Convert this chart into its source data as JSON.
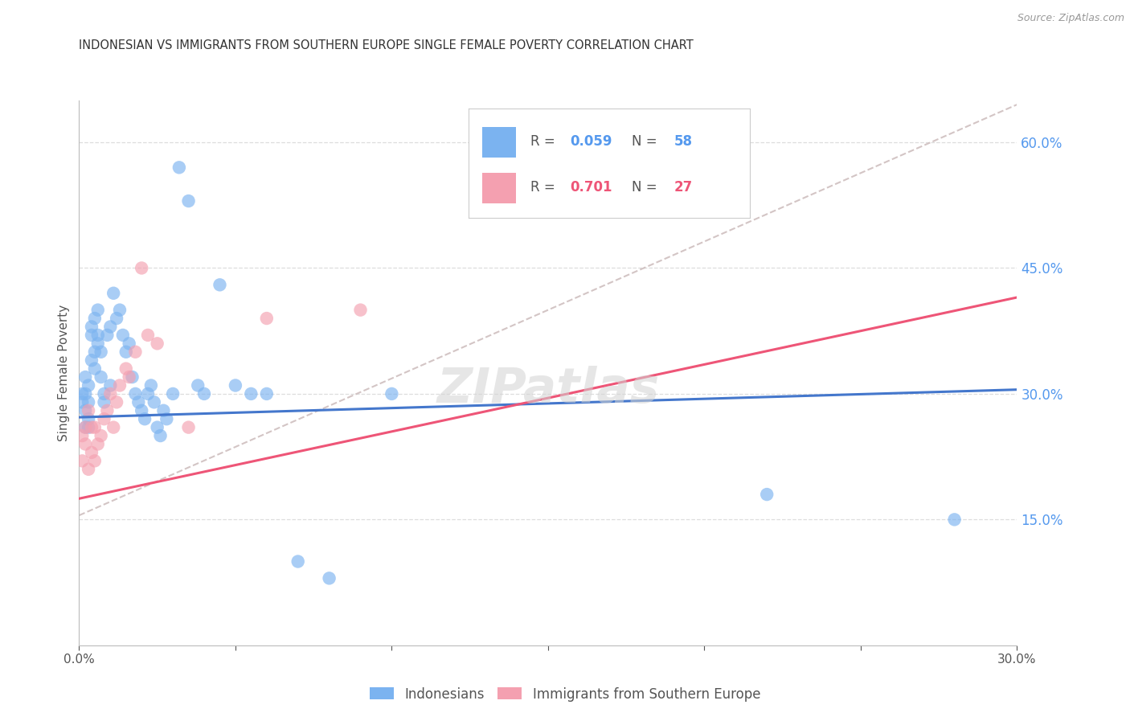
{
  "title": "INDONESIAN VS IMMIGRANTS FROM SOUTHERN EUROPE SINGLE FEMALE POVERTY CORRELATION CHART",
  "source": "Source: ZipAtlas.com",
  "ylabel": "Single Female Poverty",
  "legend_blue_R": "R = 0.059",
  "legend_blue_N": "N = 58",
  "legend_pink_R": "R = 0.701",
  "legend_pink_N": "N = 27",
  "blue_color": "#7BB3F0",
  "pink_color": "#F4A0B0",
  "blue_line_color": "#4477CC",
  "pink_line_color": "#EE5577",
  "dashed_line_color": "#CCBBBB",
  "watermark": "ZIPatlas",
  "xmin": 0.0,
  "xmax": 0.3,
  "ymin": 0.0,
  "ymax": 0.65,
  "blue_line_y0": 0.272,
  "blue_line_y1": 0.305,
  "pink_line_y0": 0.175,
  "pink_line_y1": 0.415,
  "dash_line_x0": 0.0,
  "dash_line_y0": 0.155,
  "dash_line_x1": 0.3,
  "dash_line_y1": 0.645,
  "indonesians_x": [
    0.001,
    0.001,
    0.002,
    0.002,
    0.002,
    0.002,
    0.003,
    0.003,
    0.003,
    0.003,
    0.004,
    0.004,
    0.004,
    0.005,
    0.005,
    0.005,
    0.006,
    0.006,
    0.006,
    0.007,
    0.007,
    0.008,
    0.008,
    0.009,
    0.01,
    0.01,
    0.011,
    0.012,
    0.013,
    0.014,
    0.015,
    0.016,
    0.017,
    0.018,
    0.019,
    0.02,
    0.021,
    0.022,
    0.023,
    0.024,
    0.025,
    0.026,
    0.027,
    0.028,
    0.03,
    0.032,
    0.035,
    0.038,
    0.04,
    0.045,
    0.05,
    0.055,
    0.06,
    0.07,
    0.08,
    0.1,
    0.22,
    0.28
  ],
  "indonesians_y": [
    0.29,
    0.3,
    0.26,
    0.28,
    0.3,
    0.32,
    0.26,
    0.27,
    0.29,
    0.31,
    0.34,
    0.37,
    0.38,
    0.33,
    0.35,
    0.39,
    0.37,
    0.36,
    0.4,
    0.32,
    0.35,
    0.29,
    0.3,
    0.37,
    0.31,
    0.38,
    0.42,
    0.39,
    0.4,
    0.37,
    0.35,
    0.36,
    0.32,
    0.3,
    0.29,
    0.28,
    0.27,
    0.3,
    0.31,
    0.29,
    0.26,
    0.25,
    0.28,
    0.27,
    0.3,
    0.57,
    0.53,
    0.31,
    0.3,
    0.43,
    0.31,
    0.3,
    0.3,
    0.1,
    0.08,
    0.3,
    0.18,
    0.15
  ],
  "southern_europe_x": [
    0.001,
    0.001,
    0.002,
    0.002,
    0.003,
    0.003,
    0.004,
    0.004,
    0.005,
    0.005,
    0.006,
    0.007,
    0.008,
    0.009,
    0.01,
    0.011,
    0.012,
    0.013,
    0.015,
    0.016,
    0.018,
    0.02,
    0.022,
    0.025,
    0.035,
    0.06,
    0.09
  ],
  "southern_europe_y": [
    0.22,
    0.25,
    0.24,
    0.26,
    0.21,
    0.28,
    0.23,
    0.26,
    0.22,
    0.26,
    0.24,
    0.25,
    0.27,
    0.28,
    0.3,
    0.26,
    0.29,
    0.31,
    0.33,
    0.32,
    0.35,
    0.45,
    0.37,
    0.36,
    0.26,
    0.39,
    0.4
  ]
}
